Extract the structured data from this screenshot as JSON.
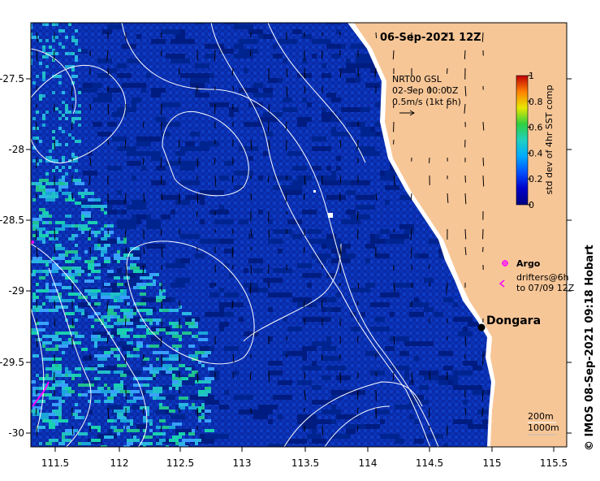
{
  "title": "06-Sep-2021 12Z",
  "current_legend": {
    "line1": "NRT00 GSL",
    "line2": "02-Sep 00:00Z",
    "line3": "0.5m/s (1kt 6h)"
  },
  "colorbar": {
    "label": "std dev of 4hr SST comp",
    "ticks": [
      "0",
      "0.2",
      "0.4",
      "0.6",
      "0.8",
      "1"
    ],
    "stops": [
      "#000080",
      "#0000c8",
      "#0050ff",
      "#00aaff",
      "#20d0c0",
      "#30d040",
      "#e8e800",
      "#ff8000",
      "#c00000"
    ]
  },
  "x_ticks": [
    "111.5",
    "112",
    "112.5",
    "113",
    "113.5",
    "114",
    "114.5",
    "115",
    "115.5"
  ],
  "y_ticks": [
    "-27.5",
    "-28",
    "-28.5",
    "-29",
    "-29.5",
    "-30"
  ],
  "place": {
    "name": "Dongara"
  },
  "argo_legend": {
    "label": "Argo"
  },
  "drifter_legend": {
    "line1": "drifters@6h",
    "line2": "to 07/09 12Z"
  },
  "depth_legend": {
    "line1": "200m",
    "line2": "1000m"
  },
  "credit": "© IMOS 08-Sep-2021 09:18 Hobart",
  "colors": {
    "land": "#f7c697",
    "ocean_dark": "#00209a",
    "contour": "#ffffff",
    "argo": "#ff00ff"
  }
}
